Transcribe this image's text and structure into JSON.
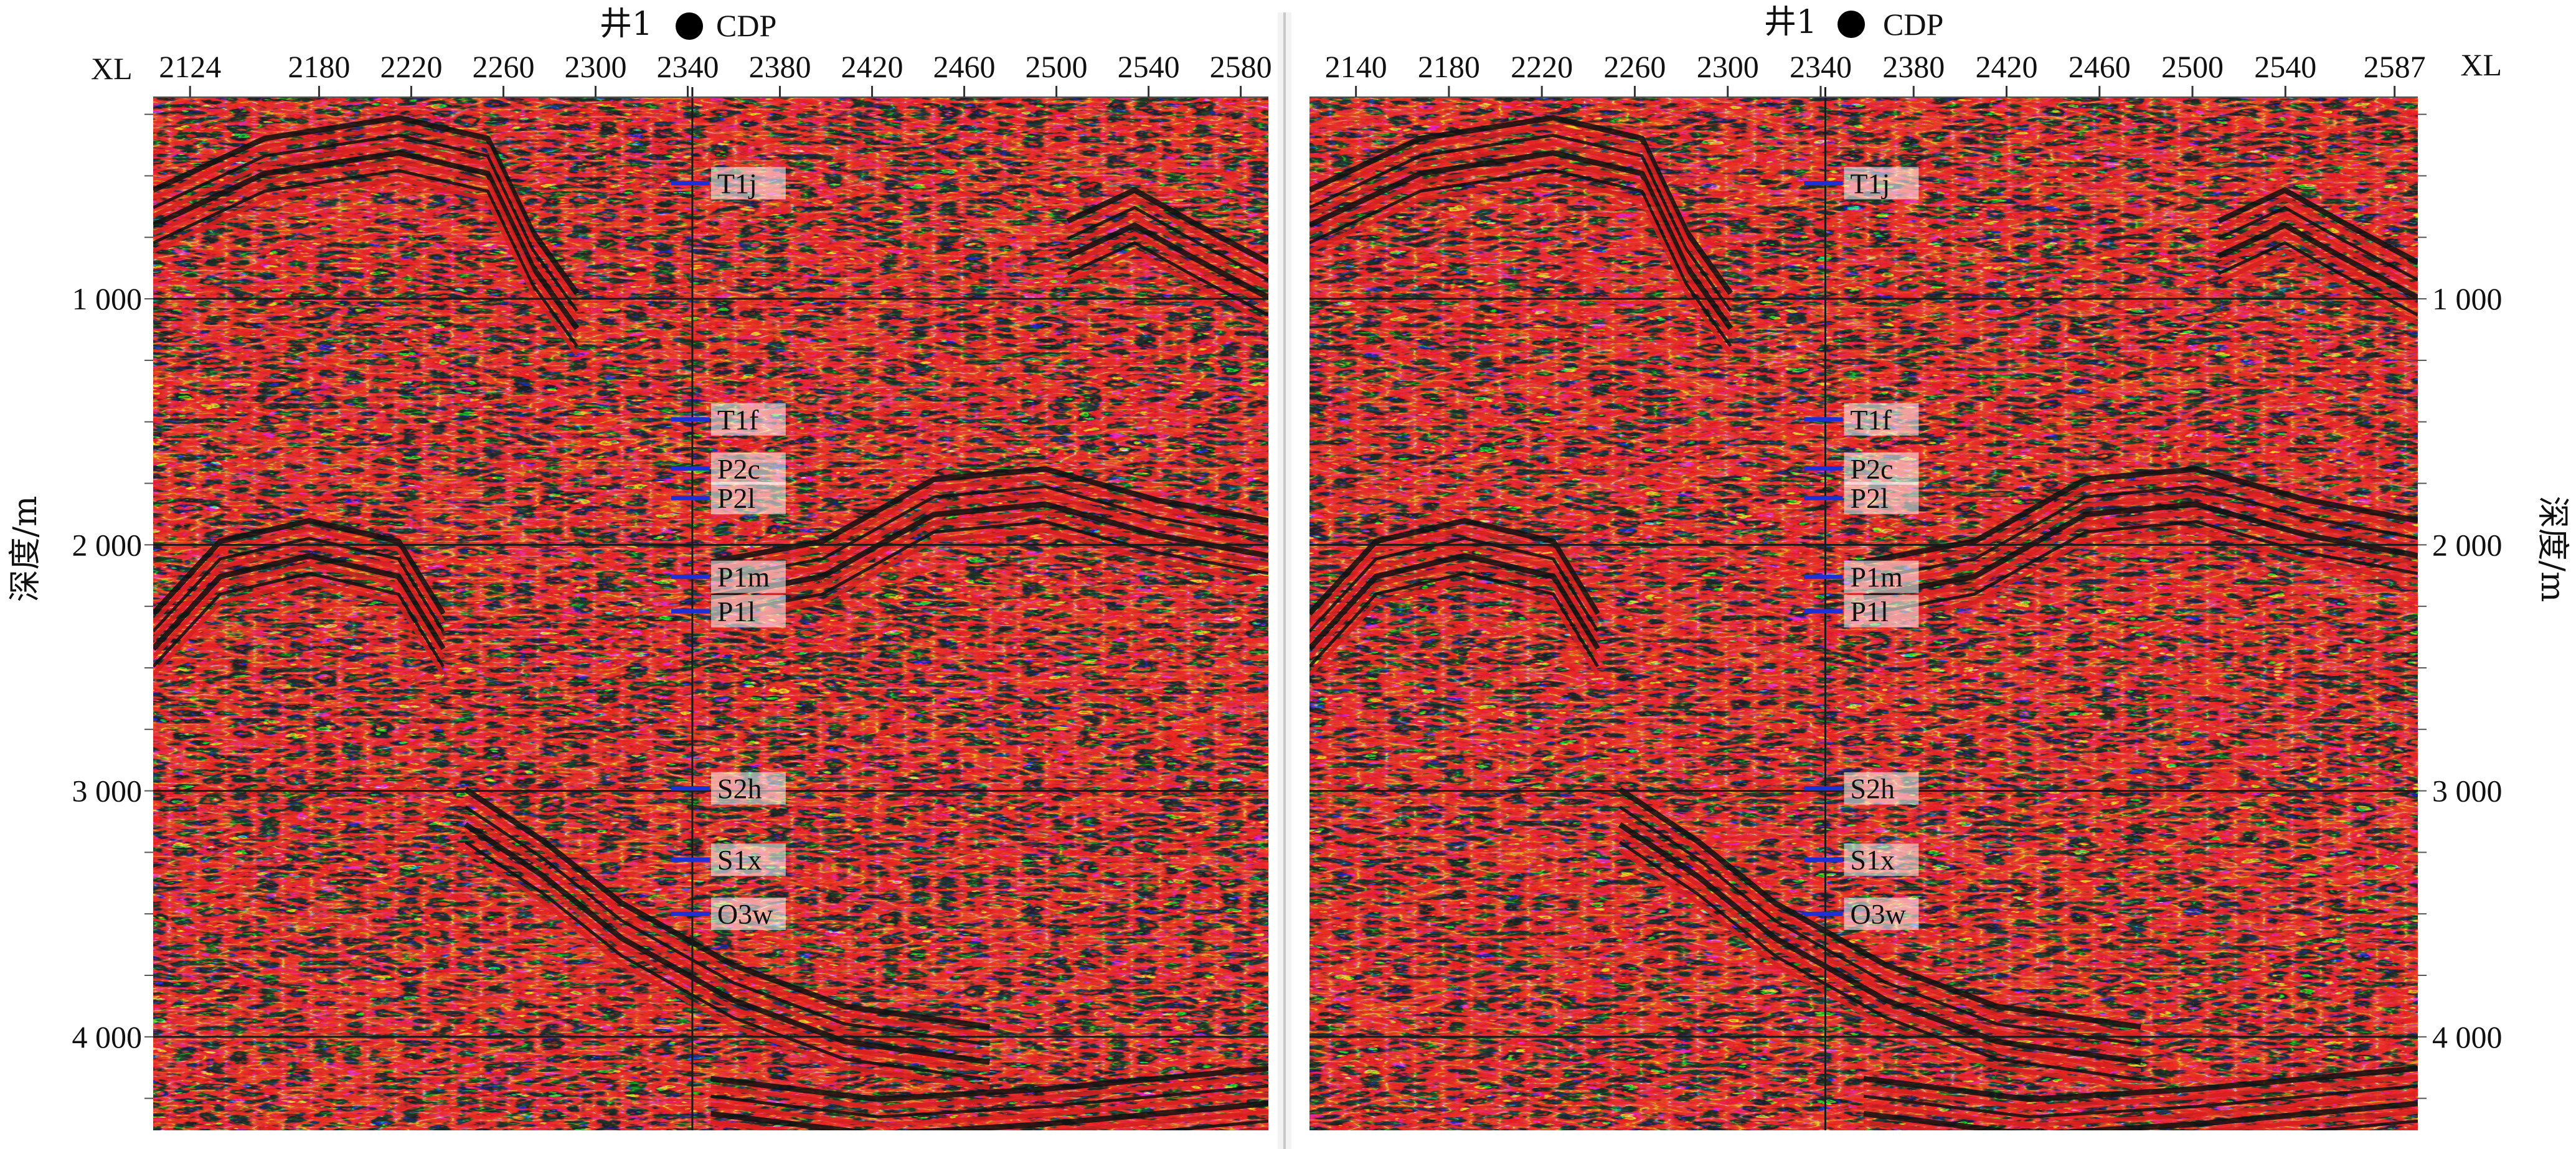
{
  "figure": {
    "colors": {
      "positive_peak": "#d81e1e",
      "negative_trough": "#101010",
      "background_mid": "#c9ecdf",
      "horizon_marker": "#1f2fd6",
      "grid_line": "#1a1a1a"
    },
    "panels": [
      {
        "id": "left",
        "well_label": "井1",
        "well_symbol_icon": "filled-circle-icon",
        "cdp_label": "CDP",
        "xl_label": "XL",
        "xl_ticks": [
          "2124",
          "2180",
          "2220",
          "2260",
          "2300",
          "2340",
          "2380",
          "2420",
          "2460",
          "2500",
          "2540",
          "2580"
        ],
        "depth_axis_title": "深度/m",
        "depth_ticks": [
          "1 000",
          "2 000",
          "3 000",
          "4 000"
        ],
        "horizons": [
          "T1j",
          "T1f",
          "P2c",
          "P2l",
          "P1m",
          "P1l",
          "S2h",
          "S1x",
          "O3w"
        ]
      },
      {
        "id": "right",
        "well_label": "井1",
        "well_symbol_icon": "filled-circle-icon",
        "cdp_label": "CDP",
        "xl_label": "XL",
        "xl_ticks": [
          "2140",
          "2180",
          "2220",
          "2260",
          "2300",
          "2340",
          "2380",
          "2420",
          "2460",
          "2500",
          "2540",
          "2587"
        ],
        "depth_axis_title": "深度/m",
        "depth_ticks": [
          "1 000",
          "2 000",
          "3 000",
          "4 000"
        ],
        "horizons": [
          "T1j",
          "T1f",
          "P2c",
          "P2l",
          "P1m",
          "P1l",
          "S2h",
          "S1x",
          "O3w"
        ]
      }
    ]
  },
  "chart_data": [
    {
      "type": "heatmap",
      "title": "",
      "xlabel": "XL",
      "ylabel": "深度/m",
      "x_ticks": [
        2124,
        2180,
        2220,
        2260,
        2300,
        2340,
        2380,
        2420,
        2460,
        2500,
        2540,
        2580
      ],
      "xlim": [
        2108,
        2592
      ],
      "ylim": [
        4380,
        180
      ],
      "y_ticks": [
        1000,
        2000,
        3000,
        4000
      ],
      "grid": true,
      "well": {
        "name": "井1",
        "xl": 2342
      },
      "horizon_picks": [
        {
          "name": "T1j",
          "depth": 530
        },
        {
          "name": "T1f",
          "depth": 1490
        },
        {
          "name": "P2c",
          "depth": 1690
        },
        {
          "name": "P2l",
          "depth": 1810
        },
        {
          "name": "P1m",
          "depth": 2130
        },
        {
          "name": "P1l",
          "depth": 2270
        },
        {
          "name": "S2h",
          "depth": 2990
        },
        {
          "name": "S1x",
          "depth": 3280
        },
        {
          "name": "O3w",
          "depth": 3500
        }
      ]
    },
    {
      "type": "heatmap",
      "title": "",
      "xlabel": "XL",
      "ylabel": "深度/m",
      "x_ticks": [
        2140,
        2180,
        2220,
        2260,
        2300,
        2340,
        2380,
        2420,
        2460,
        2500,
        2540,
        2587
      ],
      "xlim": [
        2120,
        2597
      ],
      "ylim": [
        4380,
        180
      ],
      "y_ticks": [
        1000,
        2000,
        3000,
        4000
      ],
      "grid": true,
      "well": {
        "name": "井1",
        "xl": 2342
      },
      "horizon_picks": [
        {
          "name": "T1j",
          "depth": 530
        },
        {
          "name": "T1f",
          "depth": 1490
        },
        {
          "name": "P2c",
          "depth": 1690
        },
        {
          "name": "P2l",
          "depth": 1810
        },
        {
          "name": "P1m",
          "depth": 2130
        },
        {
          "name": "P1l",
          "depth": 2270
        },
        {
          "name": "S2h",
          "depth": 2990
        },
        {
          "name": "S1x",
          "depth": 3280
        },
        {
          "name": "O3w",
          "depth": 3500
        }
      ]
    }
  ]
}
